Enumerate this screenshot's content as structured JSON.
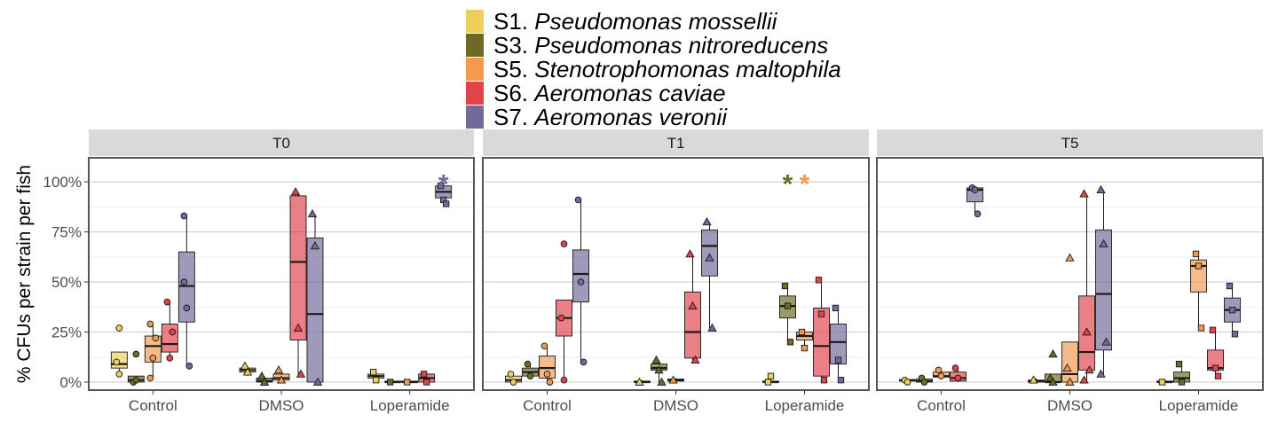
{
  "chart_data": {
    "type": "boxplot",
    "ylabel": "% CFUs per strain per fish",
    "y_ticks": [
      "0%",
      "25%",
      "50%",
      "75%",
      "100%"
    ],
    "ylim": [
      -0.04,
      1.12
    ],
    "legend": {
      "position": "top",
      "entries": [
        {
          "code": "S1.",
          "species": "Pseudomonas mossellii",
          "color": "#EECE5D"
        },
        {
          "code": "S3.",
          "species": "Pseudomonas nitroreducens",
          "color": "#6C6A25"
        },
        {
          "code": "S5.",
          "species": "Stenotrophomonas maltophila",
          "color": "#F29B4F"
        },
        {
          "code": "S6.",
          "species": "Aeromonas caviae",
          "color": "#E0434C"
        },
        {
          "code": "S7.",
          "species": "Aeromonas veronii",
          "color": "#736A9A"
        }
      ]
    },
    "treatments": [
      "Control",
      "DMSO",
      "Loperamide"
    ],
    "treatment_shapes": [
      "circle",
      "triangle",
      "square"
    ],
    "panels": [
      {
        "label": "T0",
        "groups": [
          {
            "treatment": "Control",
            "boxes": [
              {
                "strain": 0,
                "min": 0.04,
                "q1": 0.07,
                "median": 0.09,
                "q3": 0.15,
                "max": 0.15,
                "points": [
                  0.1,
                  0.04
                ],
                "outliers": [
                  0.27
                ]
              },
              {
                "strain": 1,
                "min": 0.0,
                "q1": 0.0,
                "median": 0.01,
                "q3": 0.03,
                "max": 0.03,
                "points": [
                  0.0,
                  0.01
                ],
                "outliers": [
                  0.14
                ]
              },
              {
                "strain": 2,
                "min": 0.02,
                "q1": 0.1,
                "median": 0.18,
                "q3": 0.23,
                "max": 0.29,
                "points": [
                  0.29,
                  0.12,
                  0.22,
                  0.02
                ],
                "outliers": []
              },
              {
                "strain": 3,
                "min": 0.12,
                "q1": 0.15,
                "median": 0.19,
                "q3": 0.29,
                "max": 0.4,
                "points": [
                  0.4,
                  0.12,
                  0.25
                ],
                "outliers": []
              },
              {
                "strain": 4,
                "min": 0.08,
                "q1": 0.3,
                "median": 0.48,
                "q3": 0.65,
                "max": 0.83,
                "points": [
                  0.83,
                  0.37,
                  0.08,
                  0.5
                ],
                "outliers": []
              }
            ]
          },
          {
            "treatment": "DMSO",
            "boxes": [
              {
                "strain": 0,
                "min": 0.03,
                "q1": 0.05,
                "median": 0.06,
                "q3": 0.07,
                "max": 0.08,
                "points": [
                  0.08,
                  0.05
                ],
                "outliers": []
              },
              {
                "strain": 1,
                "min": 0.0,
                "q1": 0.0,
                "median": 0.005,
                "q3": 0.02,
                "max": 0.03,
                "points": [
                  0.03,
                  0.0
                ],
                "outliers": []
              },
              {
                "strain": 2,
                "min": 0.0,
                "q1": 0.01,
                "median": 0.02,
                "q3": 0.04,
                "max": 0.06,
                "points": [
                  0.06,
                  0.01
                ],
                "outliers": []
              },
              {
                "strain": 3,
                "min": 0.04,
                "q1": 0.21,
                "median": 0.6,
                "q3": 0.93,
                "max": 0.95,
                "points": [
                  0.95,
                  0.27,
                  0.04
                ],
                "outliers": []
              },
              {
                "strain": 4,
                "min": 0.0,
                "q1": 0.0,
                "median": 0.34,
                "q3": 0.72,
                "max": 0.84,
                "points": [
                  0.84,
                  0.68,
                  0.0
                ],
                "outliers": []
              }
            ]
          },
          {
            "treatment": "Loperamide",
            "boxes": [
              {
                "strain": 0,
                "min": 0.01,
                "q1": 0.02,
                "median": 0.03,
                "q3": 0.04,
                "max": 0.06,
                "points": [
                  0.05,
                  0.01
                ],
                "outliers": []
              },
              {
                "strain": 1,
                "min": 0.0,
                "q1": 0.0,
                "median": 0.0,
                "q3": 0.005,
                "max": 0.01,
                "points": [
                  0.0
                ],
                "outliers": []
              },
              {
                "strain": 2,
                "min": 0.0,
                "q1": 0.0,
                "median": 0.0,
                "q3": 0.005,
                "max": 0.01,
                "points": [
                  0.0
                ],
                "outliers": []
              },
              {
                "strain": 3,
                "min": 0.0,
                "q1": 0.0,
                "median": 0.02,
                "q3": 0.04,
                "max": 0.05,
                "points": [
                  0.04,
                  0.0
                ],
                "outliers": []
              },
              {
                "strain": 4,
                "min": 0.89,
                "q1": 0.92,
                "median": 0.95,
                "q3": 0.98,
                "max": 0.99,
                "points": [
                  0.98,
                  0.91,
                  0.89
                ],
                "outliers": []
              }
            ]
          }
        ],
        "annotations": [
          {
            "text": "*",
            "color_strain": 4,
            "group": 2,
            "strain": 4,
            "y": 1.02
          }
        ]
      },
      {
        "label": "T1",
        "groups": [
          {
            "treatment": "Control",
            "boxes": [
              {
                "strain": 0,
                "min": 0.0,
                "q1": 0.0,
                "median": 0.01,
                "q3": 0.03,
                "max": 0.04,
                "points": [
                  0.04,
                  0.0
                ],
                "outliers": []
              },
              {
                "strain": 1,
                "min": 0.02,
                "q1": 0.03,
                "median": 0.05,
                "q3": 0.07,
                "max": 0.09,
                "points": [
                  0.09,
                  0.03
                ],
                "outliers": []
              },
              {
                "strain": 2,
                "min": 0.0,
                "q1": 0.02,
                "median": 0.07,
                "q3": 0.13,
                "max": 0.18,
                "points": [
                  0.18,
                  0.04,
                  0.0
                ],
                "outliers": []
              },
              {
                "strain": 3,
                "min": 0.01,
                "q1": 0.23,
                "median": 0.32,
                "q3": 0.41,
                "max": 0.41,
                "points": [
                  0.32,
                  0.01
                ],
                "outliers": [
                  0.69
                ]
              },
              {
                "strain": 4,
                "min": 0.1,
                "q1": 0.4,
                "median": 0.54,
                "q3": 0.66,
                "max": 0.91,
                "points": [
                  0.91,
                  0.5,
                  0.1
                ],
                "outliers": []
              }
            ]
          },
          {
            "treatment": "DMSO",
            "boxes": [
              {
                "strain": 0,
                "min": 0.0,
                "q1": 0.0,
                "median": 0.0,
                "q3": 0.005,
                "max": 0.01,
                "points": [
                  0.0
                ],
                "outliers": []
              },
              {
                "strain": 1,
                "min": 0.0,
                "q1": 0.06,
                "median": 0.07,
                "q3": 0.09,
                "max": 0.11,
                "points": [
                  0.11,
                  0.06,
                  0.0
                ],
                "outliers": []
              },
              {
                "strain": 2,
                "min": 0.0,
                "q1": 0.005,
                "median": 0.01,
                "q3": 0.015,
                "max": 0.02,
                "points": [
                  0.01
                ],
                "outliers": []
              },
              {
                "strain": 3,
                "min": 0.11,
                "q1": 0.12,
                "median": 0.25,
                "q3": 0.45,
                "max": 0.64,
                "points": [
                  0.64,
                  0.38,
                  0.11
                ],
                "outliers": []
              },
              {
                "strain": 4,
                "min": 0.27,
                "q1": 0.53,
                "median": 0.68,
                "q3": 0.76,
                "max": 0.8,
                "points": [
                  0.8,
                  0.62,
                  0.27
                ],
                "outliers": []
              }
            ]
          },
          {
            "treatment": "Loperamide",
            "boxes": [
              {
                "strain": 0,
                "min": 0.0,
                "q1": 0.0,
                "median": 0.0,
                "q3": 0.005,
                "max": 0.01,
                "points": [
                  0.0
                ],
                "outliers": [
                  0.03
                ]
              },
              {
                "strain": 1,
                "min": 0.2,
                "q1": 0.32,
                "median": 0.38,
                "q3": 0.43,
                "max": 0.48,
                "points": [
                  0.48,
                  0.38,
                  0.2
                ],
                "outliers": []
              },
              {
                "strain": 2,
                "min": 0.17,
                "q1": 0.21,
                "median": 0.23,
                "q3": 0.25,
                "max": 0.26,
                "points": [
                  0.25,
                  0.17
                ],
                "outliers": []
              },
              {
                "strain": 3,
                "min": 0.01,
                "q1": 0.03,
                "median": 0.18,
                "q3": 0.37,
                "max": 0.51,
                "points": [
                  0.51,
                  0.34,
                  0.01
                ],
                "outliers": []
              },
              {
                "strain": 4,
                "min": 0.01,
                "q1": 0.09,
                "median": 0.2,
                "q3": 0.29,
                "max": 0.37,
                "points": [
                  0.37,
                  0.11,
                  0.01
                ],
                "outliers": []
              }
            ]
          }
        ],
        "annotations": [
          {
            "text": "*",
            "color_strain": 1,
            "group": 2,
            "strain": 1,
            "y": 1.02
          },
          {
            "text": "*",
            "color_strain": 2,
            "group": 2,
            "strain": 2,
            "y": 1.02
          }
        ]
      },
      {
        "label": "T5",
        "groups": [
          {
            "treatment": "Control",
            "boxes": [
              {
                "strain": 0,
                "min": 0.0,
                "q1": 0.005,
                "median": 0.01,
                "q3": 0.012,
                "max": 0.015,
                "points": [
                  0.01,
                  0.0
                ],
                "outliers": []
              },
              {
                "strain": 1,
                "min": 0.0,
                "q1": 0.0,
                "median": 0.005,
                "q3": 0.015,
                "max": 0.03,
                "points": [
                  0.02,
                  0.0
                ],
                "outliers": []
              },
              {
                "strain": 2,
                "min": 0.02,
                "q1": 0.025,
                "median": 0.03,
                "q3": 0.05,
                "max": 0.06,
                "points": [
                  0.06,
                  0.03
                ],
                "outliers": []
              },
              {
                "strain": 3,
                "min": 0.0,
                "q1": 0.005,
                "median": 0.02,
                "q3": 0.05,
                "max": 0.07,
                "points": [
                  0.07,
                  0.02
                ],
                "outliers": []
              },
              {
                "strain": 4,
                "min": 0.84,
                "q1": 0.9,
                "median": 0.96,
                "q3": 0.97,
                "max": 0.97,
                "points": [
                  0.97,
                  0.96,
                  0.84
                ],
                "outliers": []
              }
            ]
          },
          {
            "treatment": "DMSO",
            "boxes": [
              {
                "strain": 0,
                "min": 0.0,
                "q1": 0.0,
                "median": 0.005,
                "q3": 0.01,
                "max": 0.02,
                "points": [
                  0.01
                ],
                "outliers": []
              },
              {
                "strain": 1,
                "min": 0.0,
                "q1": 0.0,
                "median": 0.0,
                "q3": 0.04,
                "max": 0.04,
                "points": [
                  0.02,
                  0.0
                ],
                "outliers": [
                  0.14
                ]
              },
              {
                "strain": 2,
                "min": 0.0,
                "q1": 0.0,
                "median": 0.04,
                "q3": 0.2,
                "max": 0.2,
                "points": [
                  0.07,
                  0.0
                ],
                "outliers": [
                  0.62
                ]
              },
              {
                "strain": 3,
                "min": 0.01,
                "q1": 0.06,
                "median": 0.15,
                "q3": 0.43,
                "max": 0.94,
                "points": [
                  0.94,
                  0.25,
                  0.06,
                  0.01
                ],
                "outliers": []
              },
              {
                "strain": 4,
                "min": 0.04,
                "q1": 0.16,
                "median": 0.44,
                "q3": 0.76,
                "max": 0.96,
                "points": [
                  0.96,
                  0.69,
                  0.2,
                  0.04
                ],
                "outliers": []
              }
            ]
          },
          {
            "treatment": "Loperamide",
            "boxes": [
              {
                "strain": 0,
                "min": 0.0,
                "q1": 0.0,
                "median": 0.0,
                "q3": 0.005,
                "max": 0.01,
                "points": [
                  0.0
                ],
                "outliers": []
              },
              {
                "strain": 1,
                "min": 0.0,
                "q1": 0.0,
                "median": 0.02,
                "q3": 0.05,
                "max": 0.09,
                "points": [
                  0.09,
                  0.0
                ],
                "outliers": []
              },
              {
                "strain": 2,
                "min": 0.27,
                "q1": 0.45,
                "median": 0.58,
                "q3": 0.61,
                "max": 0.64,
                "points": [
                  0.64,
                  0.58,
                  0.27
                ],
                "outliers": []
              },
              {
                "strain": 3,
                "min": 0.03,
                "q1": 0.06,
                "median": 0.07,
                "q3": 0.16,
                "max": 0.26,
                "points": [
                  0.26,
                  0.07,
                  0.03
                ],
                "outliers": []
              },
              {
                "strain": 4,
                "min": 0.24,
                "q1": 0.3,
                "median": 0.36,
                "q3": 0.42,
                "max": 0.48,
                "points": [
                  0.48,
                  0.36,
                  0.24
                ],
                "outliers": []
              }
            ]
          }
        ],
        "annotations": []
      }
    ]
  }
}
